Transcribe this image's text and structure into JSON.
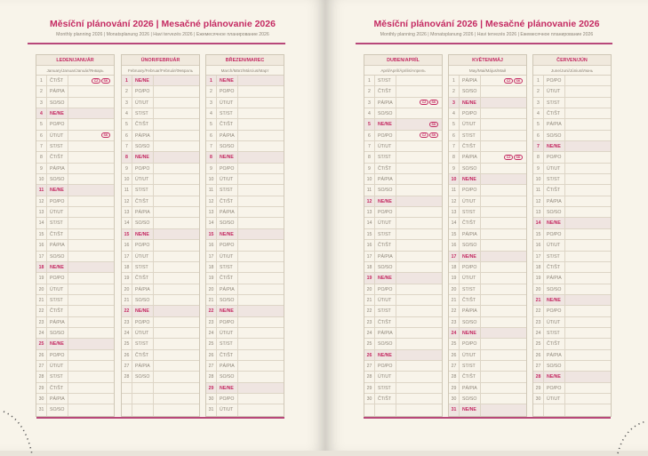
{
  "title": "Měsíční plánování 2026 | Mesačné plánovanie 2026",
  "subtitle": "Monthly planning 2026 | Monatsplanung 2026 | Havi tervezés 2026 | Ежемесячное планирование 2026",
  "colors": {
    "accent": "#c42a62",
    "page": "#f8f4ea",
    "sunday_row": "#efe5e1",
    "grid": "#cfc7b6"
  },
  "sunday_label": "NE/NE",
  "pages": [
    {
      "months": [
        {
          "name": "LEDEN/JANUÁR",
          "sub": "January/Januar/Január/Январь",
          "days": [
            "ČT/ŠT",
            "PÁ/PIA",
            "SO/SO",
            "NE/NE",
            "PO/PO",
            "ÚT/UT",
            "ST/ST",
            "ČT/ŠT",
            "PÁ/PIA",
            "SO/SO",
            "NE/NE",
            "PO/PO",
            "ÚT/UT",
            "ST/ST",
            "ČT/ŠT",
            "PÁ/PIA",
            "SO/SO",
            "NE/NE",
            "PO/PO",
            "ÚT/UT",
            "ST/ST",
            "ČT/ŠT",
            "PÁ/PIA",
            "SO/SO",
            "NE/NE",
            "PO/PO",
            "ÚT/UT",
            "ST/ST",
            "ČT/ŠT",
            "PÁ/PIA",
            "SO/SO"
          ],
          "holidays": {
            "1": [
              "CZ",
              "SK"
            ],
            "6": [
              "SK"
            ]
          }
        },
        {
          "name": "ÚNOR/FEBRUÁR",
          "sub": "February/Februar/Február/Февраль",
          "days": [
            "NE/NE",
            "PO/PO",
            "ÚT/UT",
            "ST/ST",
            "ČT/ŠT",
            "PÁ/PIA",
            "SO/SO",
            "NE/NE",
            "PO/PO",
            "ÚT/UT",
            "ST/ST",
            "ČT/ŠT",
            "PÁ/PIA",
            "SO/SO",
            "NE/NE",
            "PO/PO",
            "ÚT/UT",
            "ST/ST",
            "ČT/ŠT",
            "PÁ/PIA",
            "SO/SO",
            "NE/NE",
            "PO/PO",
            "ÚT/UT",
            "ST/ST",
            "ČT/ŠT",
            "PÁ/PIA",
            "SO/SO"
          ],
          "holidays": {}
        },
        {
          "name": "BŘEZEN/MAREC",
          "sub": "March/März/Március/Март",
          "days": [
            "NE/NE",
            "PO/PO",
            "ÚT/UT",
            "ST/ST",
            "ČT/ŠT",
            "PÁ/PIA",
            "SO/SO",
            "NE/NE",
            "PO/PO",
            "ÚT/UT",
            "ST/ST",
            "ČT/ŠT",
            "PÁ/PIA",
            "SO/SO",
            "NE/NE",
            "PO/PO",
            "ÚT/UT",
            "ST/ST",
            "ČT/ŠT",
            "PÁ/PIA",
            "SO/SO",
            "NE/NE",
            "PO/PO",
            "ÚT/UT",
            "ST/ST",
            "ČT/ŠT",
            "PÁ/PIA",
            "SO/SO",
            "NE/NE",
            "PO/PO",
            "ÚT/UT"
          ],
          "holidays": {}
        }
      ]
    },
    {
      "months": [
        {
          "name": "DUBEN/APRÍL",
          "sub": "April/April/Április/Апрель",
          "days": [
            "ST/ST",
            "ČT/ŠT",
            "PÁ/PIA",
            "SO/SO",
            "NE/NE",
            "PO/PO",
            "ÚT/UT",
            "ST/ST",
            "ČT/ŠT",
            "PÁ/PIA",
            "SO/SO",
            "NE/NE",
            "PO/PO",
            "ÚT/UT",
            "ST/ST",
            "ČT/ŠT",
            "PÁ/PIA",
            "SO/SO",
            "NE/NE",
            "PO/PO",
            "ÚT/UT",
            "ST/ST",
            "ČT/ŠT",
            "PÁ/PIA",
            "SO/SO",
            "NE/NE",
            "PO/PO",
            "ÚT/UT",
            "ST/ST",
            "ČT/ŠT"
          ],
          "holidays": {
            "3": [
              "CZ",
              "SK"
            ],
            "5": [
              "SK"
            ],
            "6": [
              "CZ",
              "SK"
            ]
          }
        },
        {
          "name": "KVĚTEN/MÁJ",
          "sub": "May/Mai/Május/Май",
          "days": [
            "PÁ/PIA",
            "SO/SO",
            "NE/NE",
            "PO/PO",
            "ÚT/UT",
            "ST/ST",
            "ČT/ŠT",
            "PÁ/PIA",
            "SO/SO",
            "NE/NE",
            "PO/PO",
            "ÚT/UT",
            "ST/ST",
            "ČT/ŠT",
            "PÁ/PIA",
            "SO/SO",
            "NE/NE",
            "PO/PO",
            "ÚT/UT",
            "ST/ST",
            "ČT/ŠT",
            "PÁ/PIA",
            "SO/SO",
            "NE/NE",
            "PO/PO",
            "ÚT/UT",
            "ST/ST",
            "ČT/ŠT",
            "PÁ/PIA",
            "SO/SO",
            "NE/NE"
          ],
          "holidays": {
            "1": [
              "CZ",
              "SK"
            ],
            "8": [
              "CZ",
              "SK"
            ]
          }
        },
        {
          "name": "ČERVEN/JÚN",
          "sub": "June/Juni/Június/Июнь",
          "days": [
            "PO/PO",
            "ÚT/UT",
            "ST/ST",
            "ČT/ŠT",
            "PÁ/PIA",
            "SO/SO",
            "NE/NE",
            "PO/PO",
            "ÚT/UT",
            "ST/ST",
            "ČT/ŠT",
            "PÁ/PIA",
            "SO/SO",
            "NE/NE",
            "PO/PO",
            "ÚT/UT",
            "ST/ST",
            "ČT/ŠT",
            "PÁ/PIA",
            "SO/SO",
            "NE/NE",
            "PO/PO",
            "ÚT/UT",
            "ST/ST",
            "ČT/ŠT",
            "PÁ/PIA",
            "SO/SO",
            "NE/NE",
            "PO/PO",
            "ÚT/UT"
          ],
          "holidays": {}
        }
      ]
    }
  ]
}
